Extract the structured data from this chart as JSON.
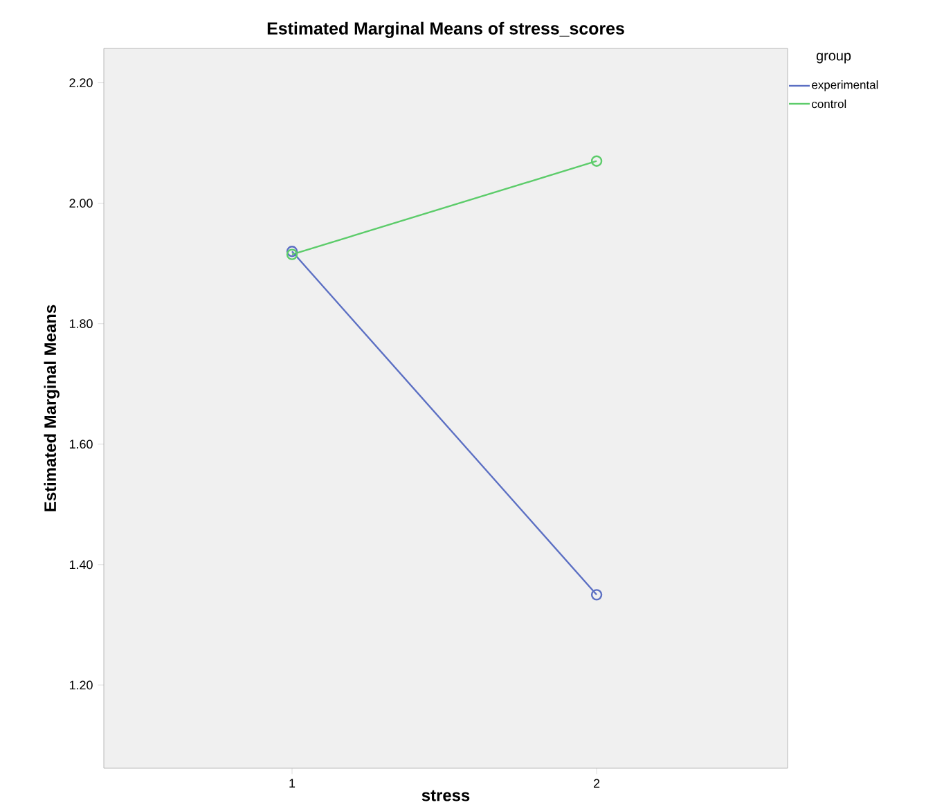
{
  "chart_data": {
    "type": "line",
    "title": "Estimated Marginal Means of stress_scores",
    "xlabel": "stress",
    "ylabel": "Estimated Marginal Means",
    "legend_title": "group",
    "x": [
      1,
      2
    ],
    "series": [
      {
        "name": "experimental",
        "color": "#5b6fc3",
        "values": [
          1.92,
          1.35
        ]
      },
      {
        "name": "control",
        "color": "#5ccc6a",
        "values": [
          1.915,
          2.07
        ]
      }
    ],
    "xlim": [
      0.382,
      2.627
    ],
    "xticks": [
      1,
      2
    ],
    "ylim": [
      1.062,
      2.257
    ],
    "yticks": [
      {
        "value": 1.2,
        "label": "1.20"
      },
      {
        "value": 1.4,
        "label": "1.40"
      },
      {
        "value": 1.6,
        "label": "1.60"
      },
      {
        "value": 1.8,
        "label": "1.80"
      },
      {
        "value": 2.0,
        "label": "2.00"
      },
      {
        "value": 2.2,
        "label": "2.20"
      }
    ],
    "marker": "circle",
    "line_style": "solid",
    "legend": "top right",
    "grid": false
  }
}
